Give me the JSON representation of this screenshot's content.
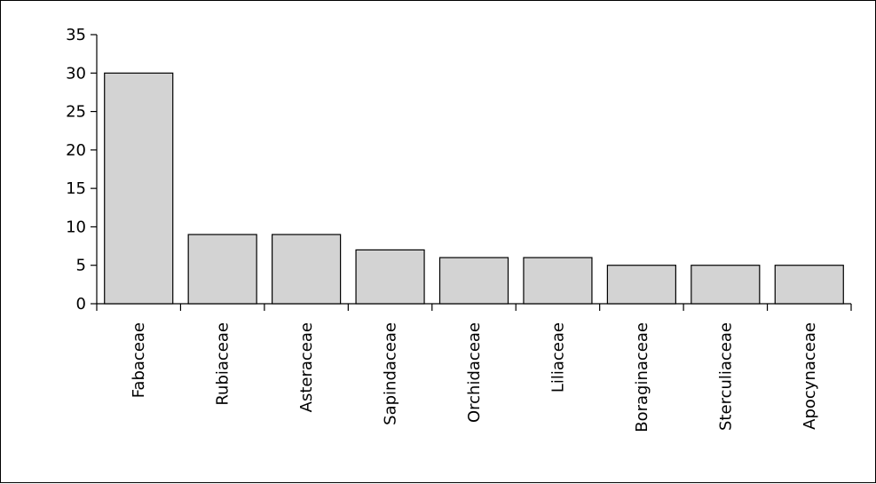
{
  "chart_data": {
    "type": "bar",
    "title": "",
    "xlabel": "",
    "ylabel": "",
    "categories": [
      "Fabaceae",
      "Rubiaceae",
      "Asteraceae",
      "Sapindaceae",
      "Orchidaceae",
      "Liliaceae",
      "Boraginaceae",
      "Sterculiaceae",
      "Apocynaceae"
    ],
    "values": [
      30,
      9,
      9,
      7,
      6,
      6,
      5,
      5,
      5
    ],
    "ylim": [
      0,
      35
    ],
    "yticks": [
      "0",
      "5",
      "10",
      "15",
      "20",
      "25",
      "30",
      "35"
    ],
    "grid": false,
    "legend": "none",
    "bar_color": "#d3d3d3",
    "edge_color": "#000000"
  }
}
